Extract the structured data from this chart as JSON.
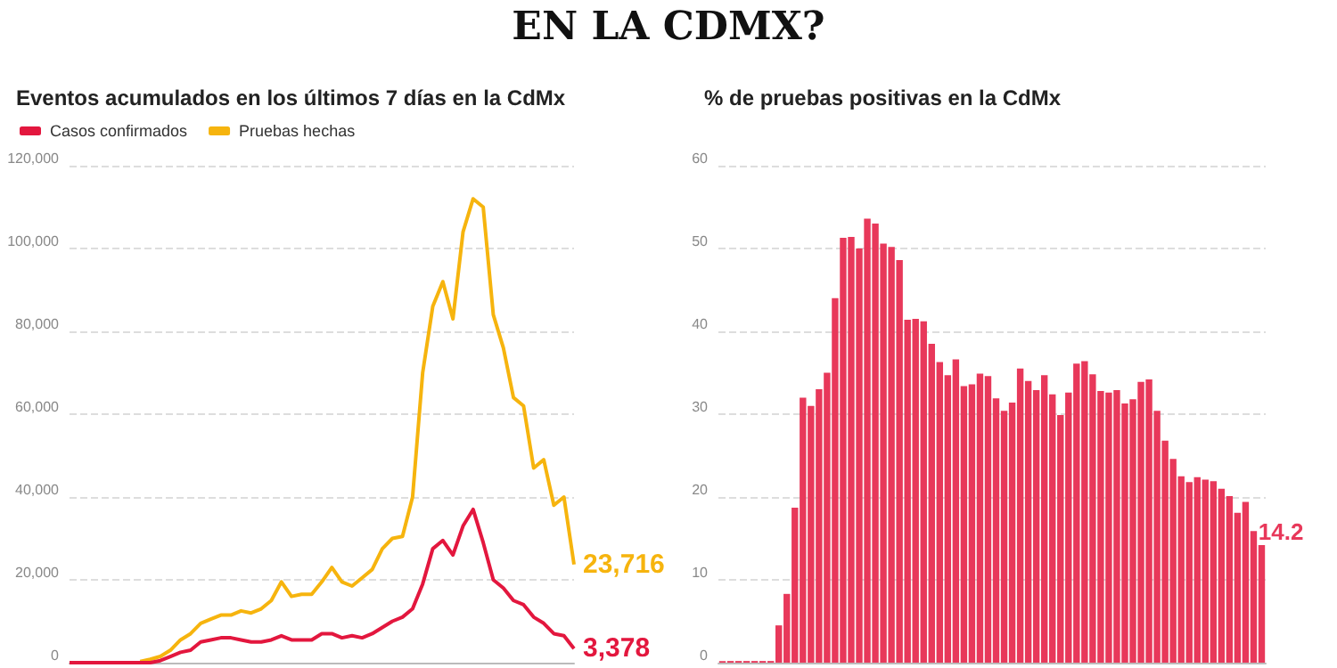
{
  "chart_data": [
    {
      "type": "line",
      "title": "Eventos acumulados en los últimos 7 días en la CdMx",
      "annotations": [
        "EN LA CDMX?"
      ],
      "legend": "top left",
      "grid": "y",
      "tick_labels": "y",
      "categories": [
        null,
        null,
        null,
        null,
        null,
        null,
        null,
        null,
        null,
        null,
        null,
        null,
        null,
        null,
        null,
        null,
        null,
        null,
        null,
        null,
        null,
        null,
        null,
        null,
        null,
        null,
        null,
        null,
        null,
        null,
        null,
        null,
        null,
        null,
        null,
        null,
        null,
        null,
        null,
        null,
        null,
        null,
        null,
        null,
        null,
        null,
        null,
        null,
        null,
        null,
        null
      ],
      "ylim": [
        0,
        120000
      ],
      "yticks": [
        {
          "value": 0,
          "label": "0"
        },
        {
          "value": 20000,
          "label": "20,000"
        },
        {
          "value": 40000,
          "label": "40,000"
        },
        {
          "value": 60000,
          "label": "60,000"
        },
        {
          "value": 80000,
          "label": "80,000"
        },
        {
          "value": 100000,
          "label": "100,000"
        },
        {
          "value": 120000,
          "label": "120,000"
        }
      ],
      "series": [
        {
          "name": "Casos confirmados",
          "color": "#e3173e",
          "values": [
            0,
            0,
            0,
            0,
            0,
            0,
            0,
            0,
            0,
            500,
            1500,
            2500,
            3000,
            5000,
            5500,
            6000,
            6000,
            5500,
            5000,
            5000,
            5500,
            6500,
            5500,
            5500,
            5500,
            7000,
            7000,
            6000,
            6500,
            6000,
            7000,
            8500,
            10000,
            11000,
            13000,
            19000,
            27500,
            29500,
            26000,
            33000,
            37000,
            29000,
            20000,
            18000,
            15000,
            14000,
            11000,
            9500,
            7000,
            6500,
            3378
          ],
          "value_labels": [
            null,
            null,
            null,
            null,
            null,
            null,
            null,
            null,
            null,
            null,
            null,
            null,
            null,
            null,
            null,
            null,
            null,
            null,
            null,
            null,
            null,
            null,
            null,
            null,
            null,
            null,
            null,
            null,
            null,
            null,
            null,
            null,
            null,
            null,
            null,
            null,
            null,
            null,
            null,
            null,
            null,
            null,
            null,
            null,
            null,
            null,
            null,
            null,
            null,
            null,
            "3,378"
          ]
        },
        {
          "name": "Pruebas hechas",
          "color": "#f6b40e",
          "values": [
            null,
            null,
            null,
            null,
            null,
            null,
            null,
            300,
            800,
            1500,
            3000,
            5500,
            7000,
            9500,
            10500,
            11500,
            11500,
            12500,
            12000,
            13000,
            15000,
            19500,
            16000,
            16500,
            16500,
            19500,
            23000,
            19500,
            18500,
            20500,
            22500,
            27500,
            30000,
            30500,
            40000,
            70000,
            86000,
            92000,
            83000,
            104000,
            112000,
            110000,
            84000,
            76000,
            64000,
            62000,
            47000,
            49000,
            38000,
            40000,
            23716
          ],
          "value_labels": [
            null,
            null,
            null,
            null,
            null,
            null,
            null,
            null,
            null,
            null,
            null,
            null,
            null,
            null,
            null,
            null,
            null,
            null,
            null,
            null,
            null,
            null,
            null,
            null,
            null,
            null,
            null,
            null,
            null,
            null,
            null,
            null,
            null,
            null,
            null,
            null,
            null,
            null,
            null,
            null,
            null,
            null,
            null,
            null,
            null,
            null,
            null,
            null,
            null,
            null,
            "23,716"
          ]
        }
      ]
    },
    {
      "type": "bar",
      "title": "% de pruebas positivas en la CdMx",
      "grid": "y",
      "tick_labels": "y",
      "color": "#e8385a",
      "categories": [
        null,
        null,
        null,
        null,
        null,
        null,
        null,
        null,
        null,
        null,
        null,
        null,
        null,
        null,
        null,
        null,
        null,
        null,
        null,
        null,
        null,
        null,
        null,
        null,
        null,
        null,
        null,
        null,
        null,
        null,
        null,
        null,
        null,
        null,
        null,
        null,
        null,
        null,
        null,
        null,
        null,
        null,
        null,
        null,
        null,
        null,
        null,
        null,
        null,
        null,
        null,
        null,
        null,
        null,
        null,
        null,
        null,
        null,
        null,
        null,
        null,
        null,
        null,
        null,
        null,
        null,
        null,
        null
      ],
      "ylim": [
        0,
        60
      ],
      "yticks": [
        0,
        10,
        20,
        30,
        40,
        50,
        60
      ],
      "values": [
        0.2,
        0.2,
        0.2,
        0.2,
        0.2,
        0.2,
        0.2,
        4.5,
        8.3,
        18.7,
        32,
        31,
        33,
        35,
        44,
        51.3,
        51.4,
        50,
        53.6,
        53,
        50.6,
        50.2,
        48.6,
        41.4,
        41.5,
        41.2,
        38.5,
        36.3,
        34.7,
        36.6,
        33.4,
        33.6,
        34.9,
        34.6,
        31.9,
        30.4,
        31.4,
        35.5,
        34,
        32.9,
        34.7,
        32.4,
        29.9,
        32.6,
        36.1,
        36.4,
        34.8,
        32.8,
        32.6,
        32.9,
        31.3,
        31.8,
        33.9,
        34.2,
        30.4,
        26.8,
        24.6,
        22.5,
        21.8,
        22.4,
        22.1,
        21.9,
        21,
        20.1,
        18.1,
        19.4,
        15.9,
        14.2
      ],
      "value_labels": [
        null,
        null,
        null,
        null,
        null,
        null,
        null,
        null,
        null,
        null,
        null,
        null,
        null,
        null,
        null,
        null,
        null,
        null,
        null,
        null,
        null,
        null,
        null,
        null,
        null,
        null,
        null,
        null,
        null,
        null,
        null,
        null,
        null,
        null,
        null,
        null,
        null,
        null,
        null,
        null,
        null,
        null,
        null,
        null,
        null,
        null,
        null,
        null,
        null,
        null,
        null,
        null,
        null,
        null,
        null,
        null,
        null,
        null,
        null,
        null,
        null,
        null,
        null,
        null,
        null,
        null,
        null,
        "14.2"
      ]
    }
  ]
}
